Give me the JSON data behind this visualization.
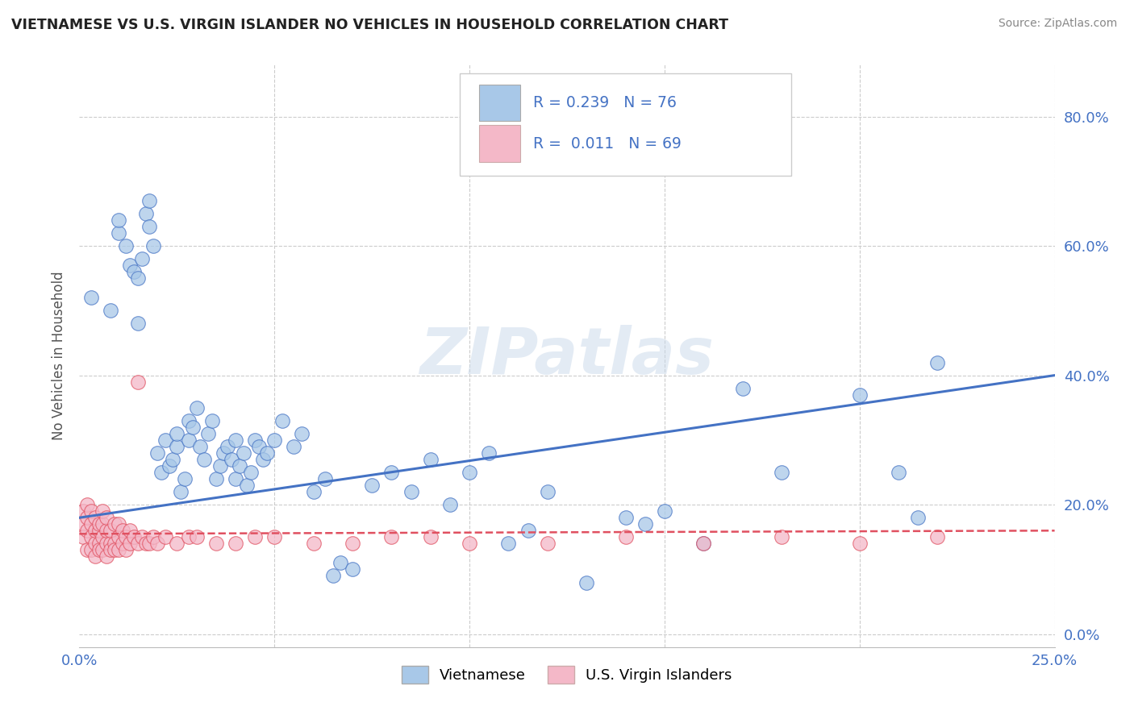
{
  "title": "VIETNAMESE VS U.S. VIRGIN ISLANDER NO VEHICLES IN HOUSEHOLD CORRELATION CHART",
  "source": "Source: ZipAtlas.com",
  "ylabel": "No Vehicles in Household",
  "yticks": [
    "0.0%",
    "20.0%",
    "40.0%",
    "60.0%",
    "80.0%"
  ],
  "ytick_vals": [
    0.0,
    0.2,
    0.4,
    0.6,
    0.8
  ],
  "xlim": [
    0.0,
    0.25
  ],
  "ylim": [
    -0.02,
    0.88
  ],
  "legend_label_blue": "Vietnamese",
  "legend_label_pink": "U.S. Virgin Islanders",
  "blue_color": "#a8c8e8",
  "pink_color": "#f4b8c8",
  "line_blue_color": "#4472c4",
  "line_pink_color": "#e05060",
  "watermark": "ZIPatlas",
  "blue_scatter_x": [
    0.003,
    0.008,
    0.01,
    0.01,
    0.012,
    0.013,
    0.014,
    0.015,
    0.015,
    0.016,
    0.017,
    0.018,
    0.018,
    0.019,
    0.02,
    0.021,
    0.022,
    0.023,
    0.024,
    0.025,
    0.025,
    0.026,
    0.027,
    0.028,
    0.028,
    0.029,
    0.03,
    0.031,
    0.032,
    0.033,
    0.034,
    0.035,
    0.036,
    0.037,
    0.038,
    0.039,
    0.04,
    0.04,
    0.041,
    0.042,
    0.043,
    0.044,
    0.045,
    0.046,
    0.047,
    0.048,
    0.05,
    0.052,
    0.055,
    0.057,
    0.06,
    0.063,
    0.065,
    0.067,
    0.07,
    0.075,
    0.08,
    0.085,
    0.09,
    0.095,
    0.1,
    0.105,
    0.11,
    0.115,
    0.12,
    0.13,
    0.14,
    0.145,
    0.15,
    0.16,
    0.17,
    0.18,
    0.2,
    0.21,
    0.215,
    0.22
  ],
  "blue_scatter_y": [
    0.52,
    0.5,
    0.62,
    0.64,
    0.6,
    0.57,
    0.56,
    0.55,
    0.48,
    0.58,
    0.65,
    0.67,
    0.63,
    0.6,
    0.28,
    0.25,
    0.3,
    0.26,
    0.27,
    0.29,
    0.31,
    0.22,
    0.24,
    0.33,
    0.3,
    0.32,
    0.35,
    0.29,
    0.27,
    0.31,
    0.33,
    0.24,
    0.26,
    0.28,
    0.29,
    0.27,
    0.3,
    0.24,
    0.26,
    0.28,
    0.23,
    0.25,
    0.3,
    0.29,
    0.27,
    0.28,
    0.3,
    0.33,
    0.29,
    0.31,
    0.22,
    0.24,
    0.09,
    0.11,
    0.1,
    0.23,
    0.25,
    0.22,
    0.27,
    0.2,
    0.25,
    0.28,
    0.14,
    0.16,
    0.22,
    0.08,
    0.18,
    0.17,
    0.19,
    0.14,
    0.38,
    0.25,
    0.37,
    0.25,
    0.18,
    0.42
  ],
  "pink_scatter_x": [
    0.001,
    0.001,
    0.001,
    0.002,
    0.002,
    0.002,
    0.002,
    0.003,
    0.003,
    0.003,
    0.003,
    0.004,
    0.004,
    0.004,
    0.004,
    0.005,
    0.005,
    0.005,
    0.005,
    0.006,
    0.006,
    0.006,
    0.006,
    0.007,
    0.007,
    0.007,
    0.007,
    0.008,
    0.008,
    0.008,
    0.009,
    0.009,
    0.009,
    0.01,
    0.01,
    0.01,
    0.011,
    0.011,
    0.012,
    0.012,
    0.013,
    0.013,
    0.014,
    0.015,
    0.015,
    0.016,
    0.017,
    0.018,
    0.019,
    0.02,
    0.022,
    0.025,
    0.028,
    0.03,
    0.035,
    0.04,
    0.045,
    0.05,
    0.06,
    0.07,
    0.08,
    0.09,
    0.1,
    0.12,
    0.14,
    0.16,
    0.18,
    0.2,
    0.22
  ],
  "pink_scatter_y": [
    0.17,
    0.19,
    0.15,
    0.16,
    0.18,
    0.13,
    0.2,
    0.15,
    0.17,
    0.13,
    0.19,
    0.14,
    0.16,
    0.18,
    0.12,
    0.14,
    0.16,
    0.13,
    0.17,
    0.15,
    0.17,
    0.13,
    0.19,
    0.14,
    0.16,
    0.12,
    0.18,
    0.14,
    0.16,
    0.13,
    0.14,
    0.17,
    0.13,
    0.15,
    0.13,
    0.17,
    0.14,
    0.16,
    0.15,
    0.13,
    0.14,
    0.16,
    0.15,
    0.39,
    0.14,
    0.15,
    0.14,
    0.14,
    0.15,
    0.14,
    0.15,
    0.14,
    0.15,
    0.15,
    0.14,
    0.14,
    0.15,
    0.15,
    0.14,
    0.14,
    0.15,
    0.15,
    0.14,
    0.14,
    0.15,
    0.14,
    0.15,
    0.14,
    0.15
  ],
  "background_color": "#ffffff",
  "grid_color": "#cccccc",
  "blue_line_x0": 0.0,
  "blue_line_y0": 0.18,
  "blue_line_x1": 0.25,
  "blue_line_y1": 0.4,
  "pink_line_x0": 0.0,
  "pink_line_y0": 0.155,
  "pink_line_x1": 0.25,
  "pink_line_y1": 0.16
}
